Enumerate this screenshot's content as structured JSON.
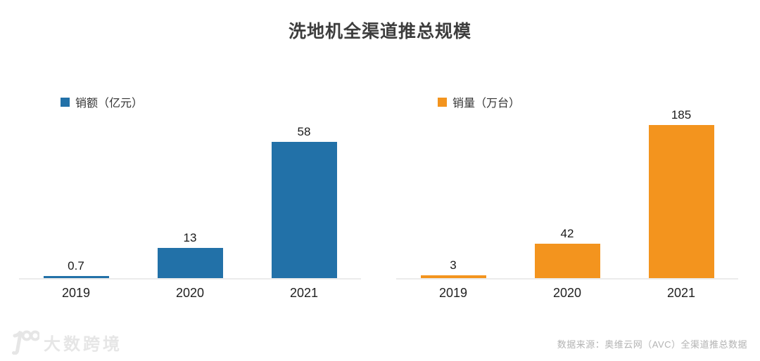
{
  "title": "洗地机全渠道推总规模",
  "chart_data": [
    {
      "type": "bar",
      "title": "洗地机全渠道推总规模",
      "series_name": "销额（亿元）",
      "categories": [
        "2019",
        "2020",
        "2021"
      ],
      "values": [
        0.7,
        13,
        58
      ],
      "data_labels": [
        "0.7",
        "13",
        "58"
      ],
      "ylim": [
        0,
        60
      ],
      "bar_color": "#2271A8",
      "legend_position": "top-left",
      "grid": false
    },
    {
      "type": "bar",
      "title": "洗地机全渠道推总规模",
      "series_name": "销量（万台）",
      "categories": [
        "2019",
        "2020",
        "2021"
      ],
      "values": [
        3,
        42,
        185
      ],
      "data_labels": [
        "3",
        "42",
        "185"
      ],
      "ylim": [
        0,
        190
      ],
      "bar_color": "#F3941E",
      "legend_position": "top-left",
      "grid": false
    }
  ],
  "footer": {
    "logo_text": "大数跨境",
    "source_text": "数据来源：奥维云网（AVC）全渠道推总数据"
  },
  "colors": {
    "sales_value_blue": "#2271A8",
    "sales_volume_orange": "#F3941E",
    "axis_line": "#ebebeb",
    "title_text": "#3d3d3d",
    "label_text": "#1a1a1a",
    "source_text": "#b3b3b3",
    "watermark": "#e6e6e6"
  }
}
